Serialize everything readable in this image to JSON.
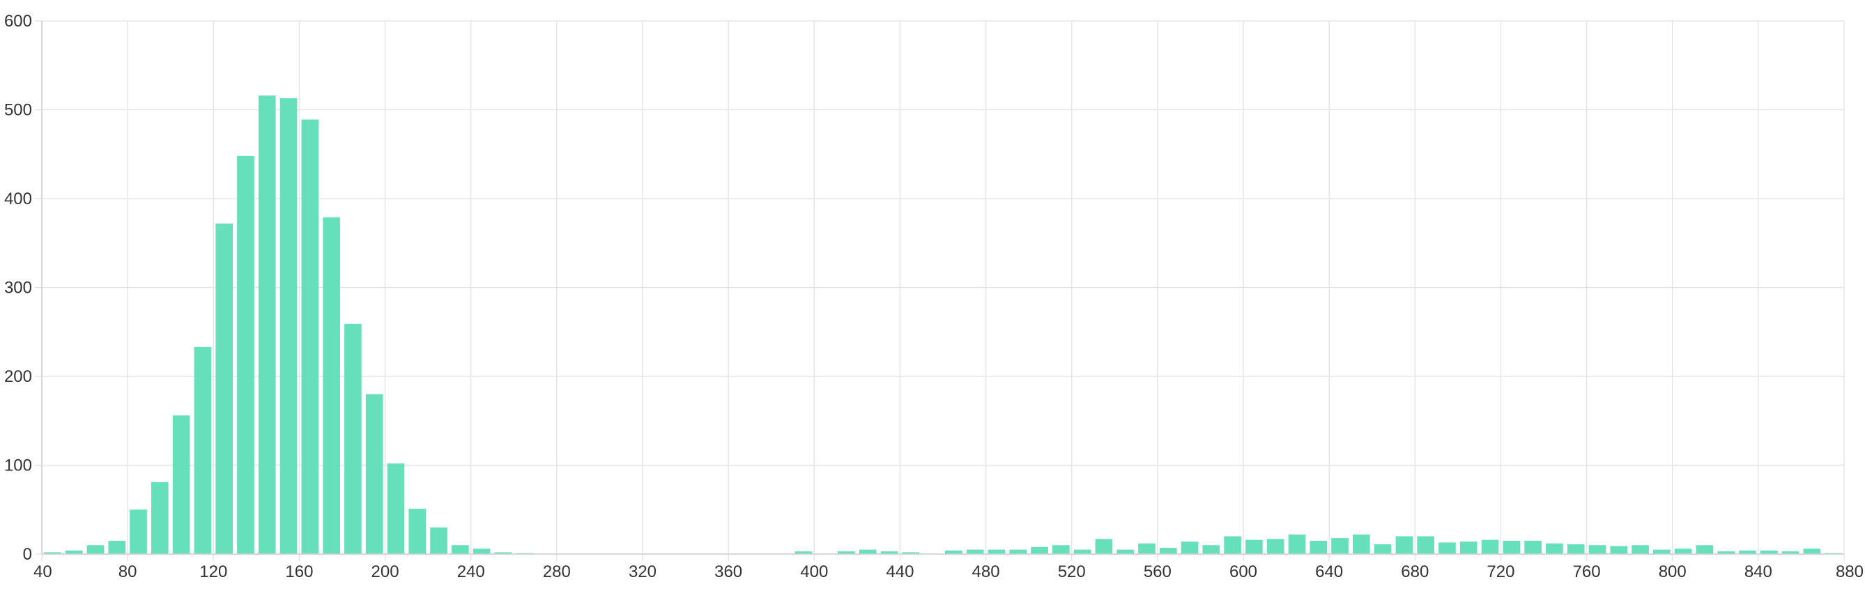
{
  "chart_data": {
    "type": "bar",
    "title": "",
    "xlabel": "",
    "ylabel": "",
    "bar_color": "#66dfbb",
    "grid": true,
    "legend": "none",
    "xlim": [
      40,
      880
    ],
    "ylim": [
      0,
      600
    ],
    "x_ticks": [
      40,
      80,
      120,
      160,
      200,
      240,
      280,
      320,
      360,
      400,
      440,
      480,
      520,
      560,
      600,
      640,
      680,
      720,
      760,
      800,
      840,
      880
    ],
    "y_ticks": [
      0,
      100,
      200,
      300,
      400,
      500,
      600
    ],
    "bin_width": 10,
    "x": [
      40,
      50,
      60,
      70,
      80,
      90,
      100,
      110,
      120,
      130,
      140,
      150,
      160,
      170,
      180,
      190,
      200,
      210,
      220,
      230,
      240,
      250,
      260,
      270,
      280,
      290,
      300,
      310,
      320,
      330,
      340,
      350,
      360,
      370,
      380,
      390,
      400,
      410,
      420,
      430,
      440,
      450,
      460,
      470,
      480,
      490,
      500,
      510,
      520,
      530,
      540,
      550,
      560,
      570,
      580,
      590,
      600,
      610,
      620,
      630,
      640,
      650,
      660,
      670,
      680,
      690,
      700,
      710,
      720,
      730,
      740,
      750,
      760,
      770,
      780,
      790,
      800,
      810,
      820,
      830,
      840,
      850,
      860,
      870
    ],
    "values": [
      2,
      4,
      10,
      15,
      50,
      81,
      156,
      233,
      372,
      448,
      516,
      513,
      489,
      379,
      259,
      180,
      102,
      51,
      30,
      10,
      6,
      2,
      1,
      0,
      0,
      0,
      0,
      0,
      0,
      0,
      0,
      0,
      0,
      0,
      0,
      3,
      0,
      3,
      5,
      3,
      2,
      0,
      4,
      5,
      5,
      5,
      8,
      10,
      5,
      17,
      5,
      12,
      7,
      14,
      10,
      20,
      16,
      17,
      22,
      15,
      18,
      22,
      11,
      20,
      20,
      13,
      14,
      16,
      15,
      15,
      12,
      11,
      10,
      9,
      10,
      5,
      6,
      10,
      3,
      4,
      4,
      3,
      6,
      1
    ]
  }
}
